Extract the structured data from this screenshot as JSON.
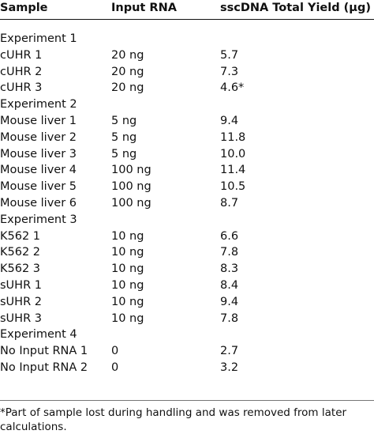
{
  "table": {
    "headers": {
      "sample": "Sample",
      "input_rna": "Input RNA",
      "yield": "sscDNA Total Yield (µg)"
    },
    "rows": [
      {
        "type": "section",
        "sample": "Experiment 1",
        "input": "",
        "yield": ""
      },
      {
        "type": "data",
        "sample": "cUHR 1",
        "input": "20 ng",
        "yield": "5.7"
      },
      {
        "type": "data",
        "sample": "cUHR 2",
        "input": "20 ng",
        "yield": "7.3"
      },
      {
        "type": "data",
        "sample": "cUHR 3",
        "input": "20 ng",
        "yield": "4.6*"
      },
      {
        "type": "section",
        "sample": "Experiment 2",
        "input": "",
        "yield": ""
      },
      {
        "type": "data",
        "sample": "Mouse liver 1",
        "input": "5 ng",
        "yield": "9.4"
      },
      {
        "type": "data",
        "sample": "Mouse liver 2",
        "input": "5 ng",
        "yield": "11.8"
      },
      {
        "type": "data",
        "sample": "Mouse liver 3",
        "input": "5 ng",
        "yield": "10.0"
      },
      {
        "type": "data",
        "sample": "Mouse liver 4",
        "input": "100 ng",
        "yield": "11.4"
      },
      {
        "type": "data",
        "sample": "Mouse liver 5",
        "input": "100 ng",
        "yield": "10.5"
      },
      {
        "type": "data",
        "sample": "Mouse liver 6",
        "input": "100 ng",
        "yield": "8.7"
      },
      {
        "type": "section",
        "sample": "Experiment 3",
        "input": "",
        "yield": ""
      },
      {
        "type": "data",
        "sample": "K562 1",
        "input": "10 ng",
        "yield": "6.6"
      },
      {
        "type": "data",
        "sample": "K562 2",
        "input": "10 ng",
        "yield": "7.8"
      },
      {
        "type": "data",
        "sample": "K562 3",
        "input": "10 ng",
        "yield": "8.3"
      },
      {
        "type": "data",
        "sample": "sUHR 1",
        "input": "10 ng",
        "yield": "8.4"
      },
      {
        "type": "data",
        "sample": "sUHR 2",
        "input": "10 ng",
        "yield": "9.4"
      },
      {
        "type": "data",
        "sample": "sUHR 3",
        "input": "10 ng",
        "yield": "7.8"
      },
      {
        "type": "section",
        "sample": "Experiment 4",
        "input": "",
        "yield": ""
      },
      {
        "type": "data",
        "sample": "No Input RNA 1",
        "input": "0",
        "yield": "2.7"
      },
      {
        "type": "data",
        "sample": "No Input RNA 2",
        "input": "0",
        "yield": "3.2"
      }
    ]
  },
  "footnote": "*Part of sample lost during handling and was removed from later calculations."
}
